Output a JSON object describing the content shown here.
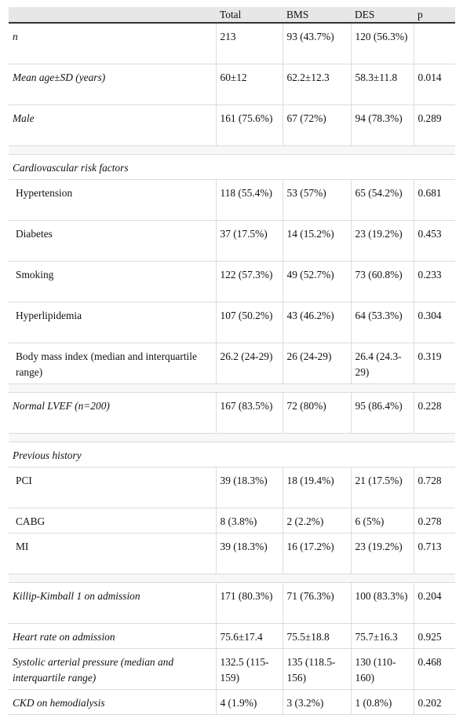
{
  "header": [
    "",
    "Total",
    "BMS",
    "DES",
    "p"
  ],
  "rows": [
    {
      "type": "row",
      "label": "n",
      "italic": true,
      "indent": false,
      "total": "213",
      "bms": "93 (43.7%)",
      "des": "120 (56.3%)",
      "p": ""
    },
    {
      "type": "row",
      "label": "Mean age±SD (years)",
      "italic": true,
      "indent": false,
      "total": "60±12",
      "bms": "62.2±12.3",
      "des": "58.3±11.8",
      "p": "0.014"
    },
    {
      "type": "row",
      "label": "Male",
      "italic": true,
      "indent": false,
      "total": "161 (75.6%)",
      "bms": "67 (72%)",
      "des": "94 (78.3%)",
      "p": "0.289"
    },
    {
      "type": "spacer"
    },
    {
      "type": "section",
      "label": "Cardiovascular risk factors"
    },
    {
      "type": "row",
      "label": "Hypertension",
      "italic": false,
      "indent": true,
      "total": "118 (55.4%)",
      "bms": "53 (57%)",
      "des": "65 (54.2%)",
      "p": "0.681"
    },
    {
      "type": "row",
      "label": "Diabetes",
      "italic": false,
      "indent": true,
      "total": "37 (17.5%)",
      "bms": "14 (15.2%)",
      "des": "23 (19.2%)",
      "p": "0.453"
    },
    {
      "type": "row",
      "label": "Smoking",
      "italic": false,
      "indent": true,
      "total": "122 (57.3%)",
      "bms": "49 (52.7%)",
      "des": "73 (60.8%)",
      "p": "0.233"
    },
    {
      "type": "row",
      "label": "Hyperlipidemia",
      "italic": false,
      "indent": true,
      "total": "107 (50.2%)",
      "bms": "43 (46.2%)",
      "des": "64 (53.3%)",
      "p": "0.304"
    },
    {
      "type": "row",
      "label": "Body mass index (median and interquartile range)",
      "italic": false,
      "indent": true,
      "total": "26.2 (24-29)",
      "bms": "26 (24-29)",
      "des": "26.4 (24.3-29)",
      "p": "0.319"
    },
    {
      "type": "spacer"
    },
    {
      "type": "row",
      "label": "Normal LVEF (n=200)",
      "italic": true,
      "indent": false,
      "total": "167 (83.5%)",
      "bms": "72 (80%)",
      "des": "95 (86.4%)",
      "p": "0.228"
    },
    {
      "type": "spacer"
    },
    {
      "type": "section",
      "label": "Previous history"
    },
    {
      "type": "row",
      "label": "PCI",
      "italic": false,
      "indent": true,
      "total": "39 (18.3%)",
      "bms": "18 (19.4%)",
      "des": "21 (17.5%)",
      "p": "0.728"
    },
    {
      "type": "row",
      "label": "CABG",
      "italic": false,
      "indent": true,
      "total": "8 (3.8%)",
      "bms": "2 (2.2%)",
      "des": "6 (5%)",
      "p": "0.278",
      "one": true
    },
    {
      "type": "row",
      "label": "MI",
      "italic": false,
      "indent": true,
      "total": "39 (18.3%)",
      "bms": "16 (17.2%)",
      "des": "23 (19.2%)",
      "p": "0.713"
    },
    {
      "type": "spacer"
    },
    {
      "type": "row",
      "label": "Killip-Kimball 1 on admission",
      "italic": true,
      "indent": false,
      "total": "171 (80.3%)",
      "bms": "71 (76.3%)",
      "des": "100 (83.3%)",
      "p": "0.204"
    },
    {
      "type": "row",
      "label": "Heart rate on admission",
      "italic": true,
      "indent": false,
      "total": "75.6±17.4",
      "bms": "75.5±18.8",
      "des": "75.7±16.3",
      "p": "0.925",
      "one": true
    },
    {
      "type": "row",
      "label": "Systolic arterial pressure (median and interquartile range)",
      "italic": true,
      "indent": false,
      "total": "132.5 (115-159)",
      "bms": "135 (118.5-156)",
      "des": "130 (110-160)",
      "p": "0.468"
    },
    {
      "type": "row",
      "label": "CKD on hemodialysis",
      "italic": true,
      "indent": false,
      "total": "4 (1.9%)",
      "bms": "3 (3.2%)",
      "des": "1 (0.8%)",
      "p": "0.202",
      "one": true
    }
  ]
}
